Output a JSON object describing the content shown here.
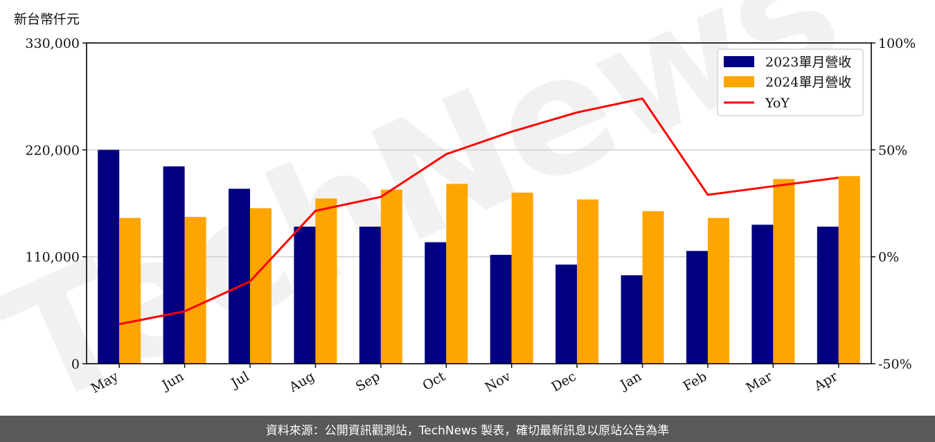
{
  "chart_data": {
    "type": "bar",
    "ylabel": "新台幣仟元",
    "categories": [
      "May",
      "Jun",
      "Jul",
      "Aug",
      "Sep",
      "Oct",
      "Nov",
      "Dec",
      "Jan",
      "Feb",
      "Mar",
      "Apr"
    ],
    "series": [
      {
        "name": "2023單月營收",
        "type": "bar",
        "color": "#000080",
        "values": [
          220000,
          203000,
          180000,
          141000,
          141000,
          125000,
          112000,
          102000,
          91000,
          116000,
          143000,
          141000
        ]
      },
      {
        "name": "2024單月營收",
        "type": "bar",
        "color": "#FFA500",
        "values": [
          150000,
          151000,
          160000,
          170000,
          179000,
          185000,
          176000,
          169000,
          157000,
          150000,
          190000,
          193000
        ]
      },
      {
        "name": "YoY",
        "type": "line",
        "axis": "right",
        "color": "#FF0000",
        "values": [
          -31.5,
          -25.5,
          -11.5,
          21.5,
          28,
          48,
          58.5,
          67.5,
          74,
          29,
          33,
          37
        ]
      }
    ],
    "ylim": [
      0,
      330000
    ],
    "yticks": [
      "0",
      "110,000",
      "220,000",
      "330,000"
    ],
    "y2lim": [
      -50,
      100
    ],
    "y2ticks": [
      "-50%",
      "0%",
      "50%",
      "100%"
    ],
    "grid": "horizontal",
    "legend_position": "top-right"
  },
  "watermark": "TechNews",
  "footer": "資料來源：公開資訊觀測站，TechNews 製表，確切最新訊息以原站公告為準"
}
